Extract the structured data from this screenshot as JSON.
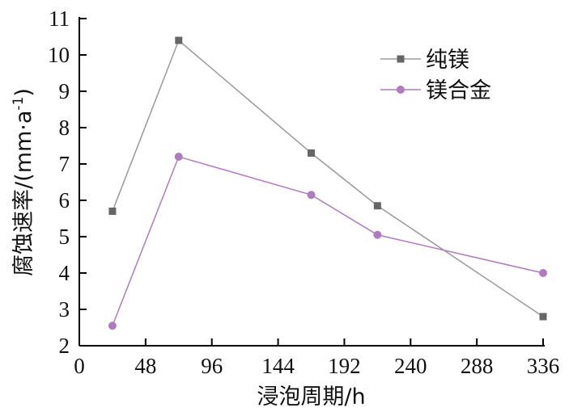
{
  "chart_data": {
    "type": "line",
    "xlabel": "浸泡周期/h",
    "ylabel": "腐蚀速率/(mm·a",
    "ylabel_sup": "-1",
    "ylabel_suffix": ")",
    "xlim": [
      0,
      336
    ],
    "ylim": [
      2,
      11
    ],
    "xticks": [
      0,
      48,
      96,
      144,
      192,
      240,
      288,
      336
    ],
    "yticks": [
      2,
      3,
      4,
      5,
      6,
      7,
      8,
      9,
      10,
      11
    ],
    "grid": false,
    "legend_position": "top-right",
    "series": [
      {
        "name": "纯镁",
        "color": "#999999",
        "marker": "square",
        "marker_color": "#666666",
        "x": [
          24,
          72,
          168,
          216,
          336
        ],
        "y": [
          5.7,
          10.4,
          7.3,
          5.85,
          2.8
        ]
      },
      {
        "name": "镁合金",
        "color": "#b07ac0",
        "marker": "circle",
        "marker_color": "#b07ac0",
        "x": [
          24,
          72,
          168,
          216,
          336
        ],
        "y": [
          2.55,
          7.2,
          6.15,
          5.05,
          4.0
        ]
      }
    ]
  }
}
